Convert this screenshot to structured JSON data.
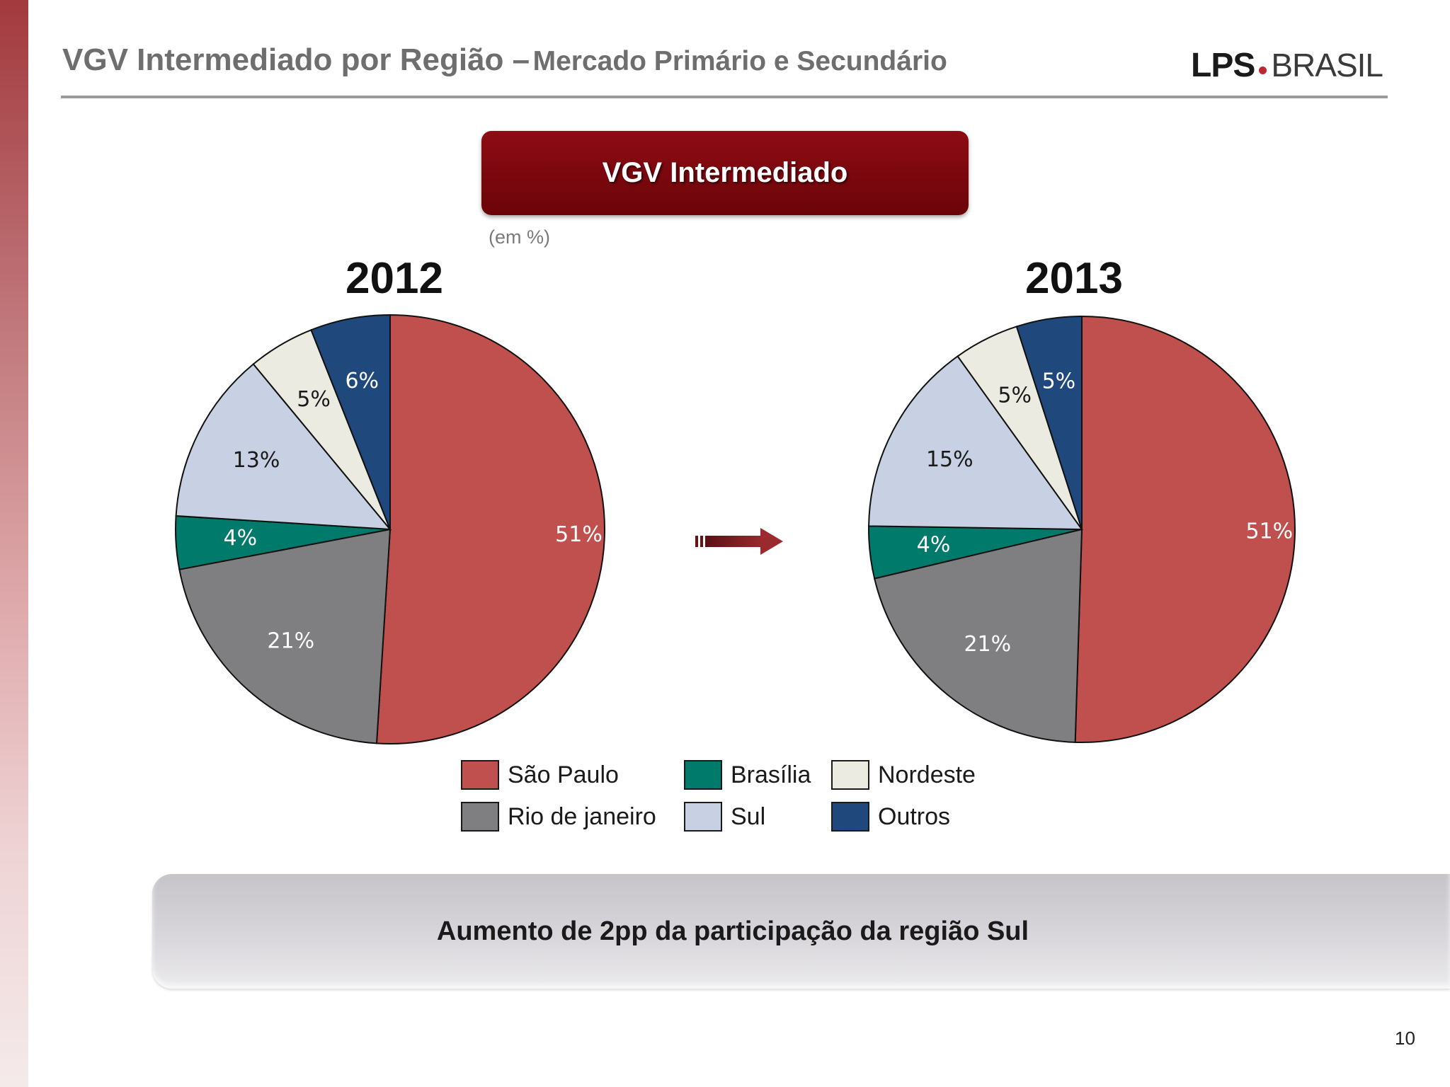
{
  "header": {
    "title_main": "VGV Intermediado por Região –",
    "title_sub": "Mercado Primário e Secundário",
    "logo_lps": "LPS",
    "logo_brasil": "BRASIL"
  },
  "chart_title": "VGV Intermediado",
  "unit_label": "(em %)",
  "conclusion": "Aumento de 2pp da participação da região Sul",
  "page_number": "10",
  "colors": {
    "sao_paulo": "#c0504d",
    "rio_de_janeiro": "#7f7f82",
    "brasilia": "#007a6a",
    "sul": "#c7d1e3",
    "nordeste": "#ecebe2",
    "outros": "#1f497d",
    "title_box": "#7d0810"
  },
  "legend": [
    {
      "label": "São Paulo",
      "color": "#c0504d"
    },
    {
      "label": "Brasília",
      "color": "#007a6a"
    },
    {
      "label": "Nordeste",
      "color": "#ecebe2"
    },
    {
      "label": "Rio de janeiro",
      "color": "#7f7f82"
    },
    {
      "label": "Sul",
      "color": "#c7d1e3"
    },
    {
      "label": "Outros",
      "color": "#1f497d"
    }
  ],
  "chart_data": [
    {
      "type": "pie",
      "title": "2012",
      "slices": [
        {
          "name": "São Paulo",
          "value": 51,
          "label": "51%",
          "color": "#c0504d"
        },
        {
          "name": "Rio de janeiro",
          "value": 21,
          "label": "21%",
          "color": "#7f7f82"
        },
        {
          "name": "Brasília",
          "value": 4,
          "label": "4%",
          "color": "#007a6a"
        },
        {
          "name": "Sul",
          "value": 13,
          "label": "13%",
          "color": "#c7d1e3"
        },
        {
          "name": "Nordeste",
          "value": 5,
          "label": "5%",
          "color": "#ecebe2"
        },
        {
          "name": "Outros",
          "value": 6,
          "label": "6%",
          "color": "#1f497d"
        }
      ]
    },
    {
      "type": "pie",
      "title": "2013",
      "slices": [
        {
          "name": "São Paulo",
          "value": 51,
          "label": "51%",
          "color": "#c0504d"
        },
        {
          "name": "Rio de janeiro",
          "value": 21,
          "label": "21%",
          "color": "#7f7f82"
        },
        {
          "name": "Brasília",
          "value": 4,
          "label": "4%",
          "color": "#007a6a"
        },
        {
          "name": "Sul",
          "value": 15,
          "label": "15%",
          "color": "#c7d1e3"
        },
        {
          "name": "Nordeste",
          "value": 5,
          "label": "5%",
          "color": "#ecebe2"
        },
        {
          "name": "Outros",
          "value": 5,
          "label": "5%",
          "color": "#1f497d"
        }
      ]
    }
  ]
}
